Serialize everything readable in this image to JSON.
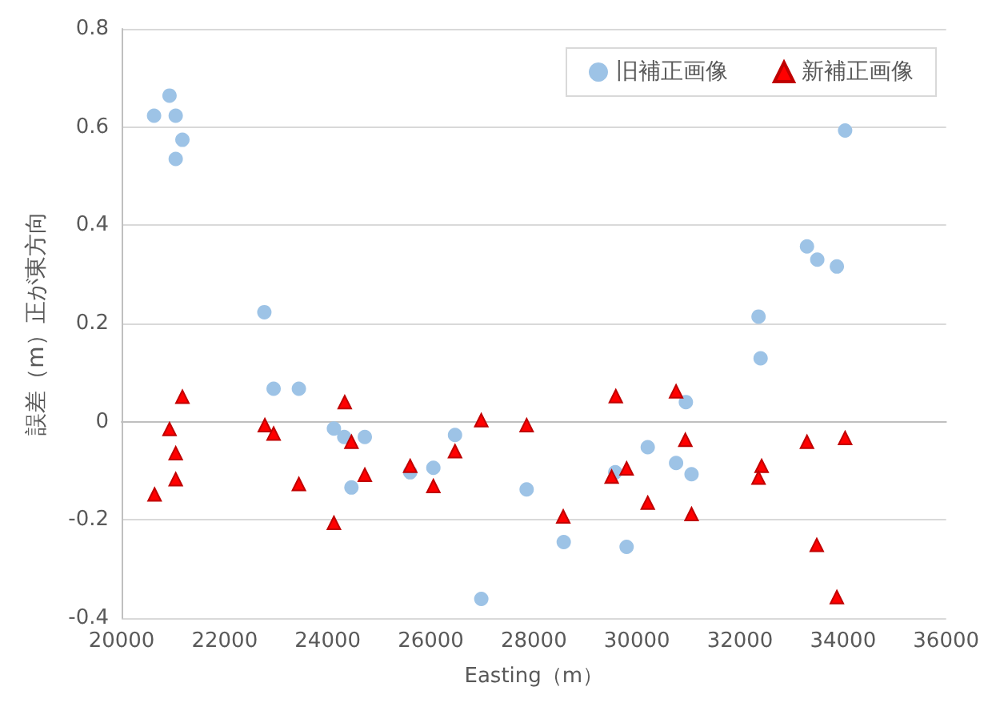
{
  "chart_data": {
    "type": "scatter",
    "xlabel": "Easting（m）",
    "ylabel": "誤差（m）正が東方向",
    "xlim": [
      20000,
      36000
    ],
    "xticks": [
      20000,
      22000,
      24000,
      26000,
      28000,
      30000,
      32000,
      34000,
      36000
    ],
    "ylim": [
      -0.4,
      0.8
    ],
    "yticks": [
      -0.4,
      -0.2,
      0,
      0.2,
      0.4,
      0.6,
      0.8
    ],
    "grid": "y",
    "legend": "top right",
    "series": [
      {
        "name": "旧補正画像",
        "color": "#9dc3e6",
        "marker": "circle",
        "x": [
          20930,
          20630,
          21050,
          21180,
          21050,
          22770,
          22950,
          23440,
          24120,
          24320,
          24720,
          24460,
          25600,
          26050,
          26470,
          26980,
          27860,
          34040,
          33300,
          33500,
          33880,
          32360,
          32400,
          30950,
          30210,
          30760,
          31060,
          29580,
          28580,
          29800
        ],
        "values": [
          0.664,
          0.623,
          0.623,
          0.574,
          0.535,
          0.223,
          0.067,
          0.067,
          -0.014,
          -0.031,
          -0.031,
          -0.134,
          -0.103,
          -0.094,
          -0.027,
          -0.361,
          -0.138,
          0.593,
          0.357,
          0.33,
          0.316,
          0.214,
          0.129,
          0.04,
          -0.052,
          -0.084,
          -0.107,
          -0.103,
          -0.245,
          -0.255
        ]
      },
      {
        "name": "新補正画像",
        "color": "#ff0000",
        "marker": "triangle",
        "x": [
          21180,
          20930,
          21050,
          21050,
          20640,
          22780,
          22950,
          23440,
          24330,
          24460,
          24120,
          24720,
          25600,
          26050,
          26470,
          26980,
          27860,
          28570,
          29590,
          29510,
          29800,
          30210,
          30760,
          30940,
          31060,
          32420,
          32360,
          33300,
          34040,
          33490,
          33880
        ],
        "values": [
          0.051,
          -0.015,
          -0.064,
          -0.117,
          -0.148,
          -0.007,
          -0.024,
          -0.127,
          0.04,
          -0.041,
          -0.206,
          -0.108,
          -0.09,
          -0.131,
          -0.06,
          0.003,
          -0.007,
          -0.193,
          0.052,
          -0.112,
          -0.095,
          -0.165,
          0.062,
          -0.037,
          -0.188,
          -0.09,
          -0.114,
          -0.041,
          -0.033,
          -0.251,
          -0.357
        ]
      }
    ]
  }
}
